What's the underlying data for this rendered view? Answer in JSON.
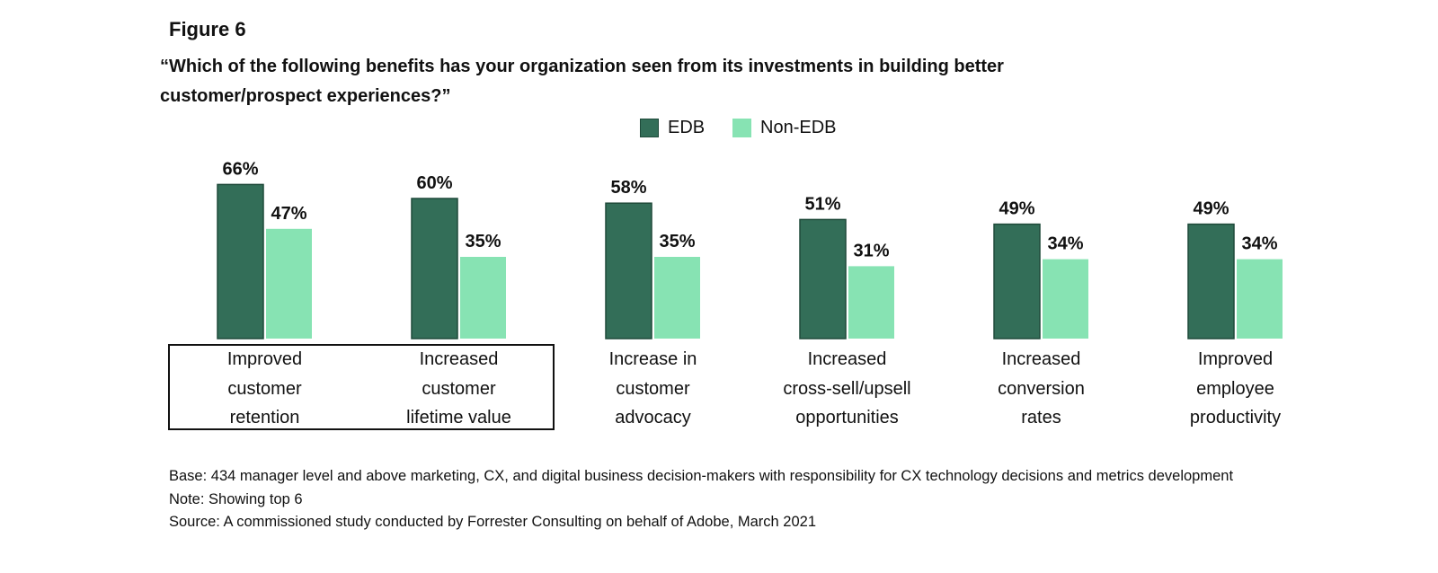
{
  "figure_label": "Figure 6",
  "question": "“Which of the following benefits has your organization seen from its investments in building better customer/prospect experiences?”",
  "legend": [
    {
      "name": "EDB",
      "color": "#336e58"
    },
    {
      "name": "Non-EDB",
      "color": "#87e3b3"
    }
  ],
  "chart_data": {
    "type": "bar",
    "categories": [
      "Improved\ncustomer\nretention",
      "Increased\ncustomer\nlifetime value",
      "Increase in\ncustomer\nadvocacy",
      "Increased\ncross-sell/upsell\nopportunities",
      "Increased\nconversion\nrates",
      "Improved\nemployee\nproductivity"
    ],
    "series": [
      {
        "name": "EDB",
        "values": [
          66,
          60,
          58,
          51,
          49,
          49
        ],
        "color": "#336e58"
      },
      {
        "name": "Non-EDB",
        "values": [
          47,
          35,
          35,
          31,
          34,
          34
        ],
        "color": "#87e3b3"
      }
    ],
    "value_suffix": "%",
    "highlighted_categories": [
      0,
      1
    ],
    "grid": false,
    "legend_position": "top-center"
  },
  "footnotes": {
    "base": "Base: 434 manager level and above marketing, CX, and digital business decision-makers with responsibility for CX technology decisions and metrics development",
    "note": "Note: Showing top 6",
    "source": "Source: A commissioned study conducted by Forrester Consulting on behalf of Adobe, March 2021"
  }
}
